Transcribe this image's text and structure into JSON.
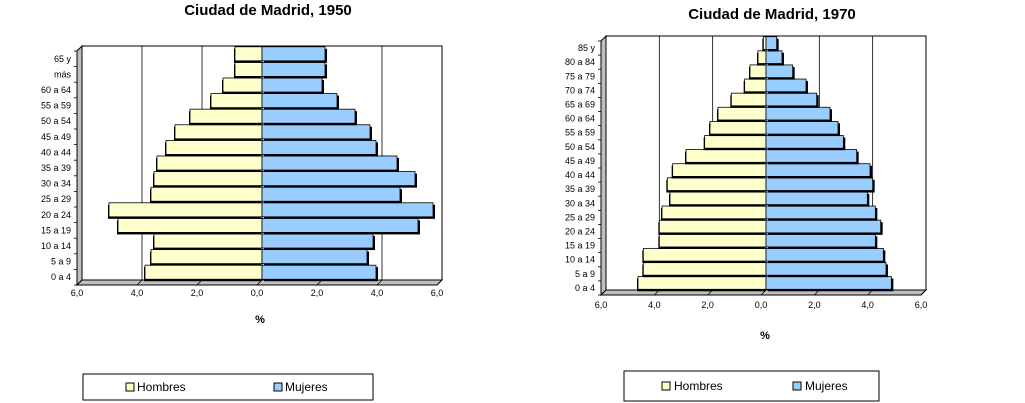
{
  "chart_data": [
    {
      "type": "bar",
      "orientation": "horizontal-diverging",
      "title": "Ciudad de Madrid, 1950",
      "xlabel": "%",
      "ylabel": "",
      "xlim": [
        -6,
        6
      ],
      "x_tick_labels": [
        "6,0",
        "4,0",
        "2,0",
        "0,0",
        "2,0",
        "4,0",
        "6,0"
      ],
      "grid": true,
      "legend_position": "bottom",
      "categories": [
        "0 a 4",
        "5 a 9",
        "10 a 14",
        "15 a 19",
        "20 a 24",
        "25 a 29",
        "30 a 34",
        "35 a 39",
        "40 a 44",
        "45 a 49",
        "50 a 54",
        "55 a 59",
        "60 a 64",
        "más",
        "65 y"
      ],
      "series": [
        {
          "name": "Hombres",
          "color": "#ffffcc",
          "values": [
            3.9,
            3.7,
            3.6,
            4.8,
            5.1,
            3.7,
            3.6,
            3.5,
            3.2,
            2.9,
            2.4,
            1.7,
            1.3,
            0.9,
            0.9
          ]
        },
        {
          "name": "Mujeres",
          "color": "#99ccff",
          "values": [
            3.8,
            3.5,
            3.7,
            5.2,
            5.7,
            4.6,
            5.1,
            4.5,
            3.8,
            3.6,
            3.1,
            2.5,
            2.0,
            2.1,
            2.1
          ]
        }
      ]
    },
    {
      "type": "bar",
      "orientation": "horizontal-diverging",
      "title": "Ciudad de Madrid, 1970",
      "xlabel": "%",
      "ylabel": "",
      "xlim": [
        -6,
        6
      ],
      "x_tick_labels": [
        "6,0",
        "4,0",
        "2,0",
        "0,0",
        "2,0",
        "4,0",
        "6,0"
      ],
      "grid": true,
      "legend_position": "bottom",
      "categories": [
        "0 a 4",
        "5 a 9",
        "10 a 14",
        "15 a 19",
        "20 a 24",
        "25 a 29",
        "30 a 34",
        "35 a 39",
        "40 a 44",
        "45 a 49",
        "50 a 54",
        "55 a 59",
        "60 a 64",
        "65 a 69",
        "70 a 74",
        "75 a 79",
        "80 a 84",
        "85 y"
      ],
      "series": [
        {
          "name": "Hombres",
          "color": "#ffffcc",
          "values": [
            4.8,
            4.6,
            4.6,
            4.0,
            4.0,
            3.9,
            3.6,
            3.7,
            3.5,
            3.0,
            2.3,
            2.1,
            1.8,
            1.3,
            0.8,
            0.6,
            0.3,
            0.1
          ]
        },
        {
          "name": "Mujeres",
          "color": "#99ccff",
          "values": [
            4.7,
            4.5,
            4.4,
            4.1,
            4.3,
            4.1,
            3.8,
            4.0,
            3.9,
            3.4,
            2.9,
            2.7,
            2.4,
            1.9,
            1.5,
            1.0,
            0.6,
            0.4
          ]
        }
      ]
    }
  ]
}
